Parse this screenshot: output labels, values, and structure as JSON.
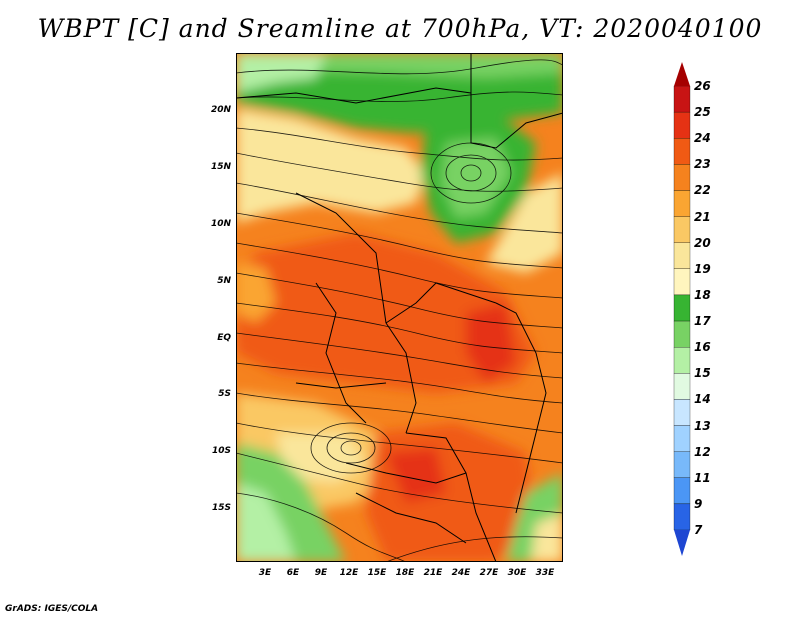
{
  "title": "WBPT [C] and Sreamline at 700hPa, VT: 2020040100",
  "credit": "GrADS: IGES/COLA",
  "lat_labels": [
    "20N",
    "15N",
    "10N",
    "5N",
    "EQ",
    "5S",
    "10S",
    "15S"
  ],
  "lon_labels": [
    "3E",
    "6E",
    "9E",
    "12E",
    "15E",
    "18E",
    "21E",
    "24E",
    "27E",
    "30E",
    "33E"
  ],
  "colorbar": {
    "levels": [
      "26",
      "25",
      "24",
      "23",
      "22",
      "21",
      "20",
      "19",
      "18",
      "17",
      "16",
      "15",
      "14",
      "13",
      "12",
      "11",
      "9",
      "7"
    ],
    "colors": [
      "#a50000",
      "#c81414",
      "#e53214",
      "#f05a14",
      "#f5821e",
      "#faa532",
      "#fac864",
      "#fae69b",
      "#fff5be",
      "#37b432",
      "#78d264",
      "#b4f0a5",
      "#e1fae1",
      "#c8e6ff",
      "#a0d2ff",
      "#78b9fa",
      "#4b96f5",
      "#2864e6",
      "#1e46d2"
    ]
  },
  "map": {
    "variable": "wet-bulb potential temperature",
    "units": "C",
    "level": "700hPa",
    "valid_time": "2020040100"
  }
}
